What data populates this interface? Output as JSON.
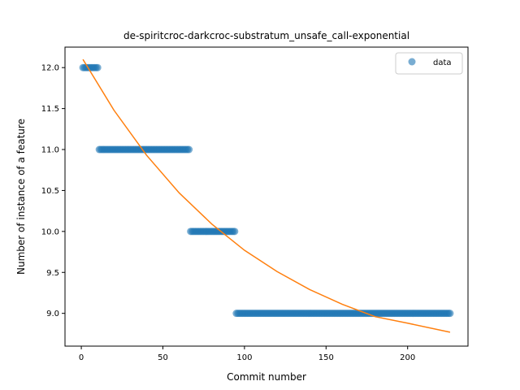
{
  "chart_data": {
    "type": "scatter",
    "title": "de-spiritcroc-darkcroc-substratum_unsafe_call-exponential",
    "xlabel": "Commit number",
    "ylabel": "Number of instance of a feature",
    "xlim": [
      -10,
      237
    ],
    "ylim": [
      8.6,
      12.25
    ],
    "xticks": [
      0,
      50,
      100,
      150,
      200
    ],
    "yticks": [
      9.0,
      9.5,
      10.0,
      10.5,
      11.0,
      11.5,
      12.0
    ],
    "ytick_labels": [
      "9.0",
      "9.5",
      "10.0",
      "10.5",
      "11.0",
      "11.5",
      "12.0"
    ],
    "grid": false,
    "legend": {
      "position": "top-right",
      "entries": [
        "data"
      ]
    },
    "colors": {
      "data": "#1f77b4",
      "fit": "#ff7f0e"
    },
    "series": [
      {
        "name": "data",
        "kind": "scatter",
        "segments": [
          {
            "x_start": 1,
            "x_end": 10,
            "y": 12
          },
          {
            "x_start": 11,
            "x_end": 66,
            "y": 11
          },
          {
            "x_start": 67,
            "x_end": 94,
            "y": 10
          },
          {
            "x_start": 95,
            "x_end": 226,
            "y": 9
          }
        ]
      },
      {
        "kind": "line",
        "model": "exponential",
        "x": [
          1,
          20,
          40,
          60,
          80,
          100,
          120,
          140,
          160,
          180,
          200,
          226
        ],
        "y": [
          12.1,
          11.48,
          10.93,
          10.47,
          10.09,
          9.77,
          9.51,
          9.29,
          9.11,
          8.96,
          8.88,
          8.77
        ]
      }
    ]
  }
}
